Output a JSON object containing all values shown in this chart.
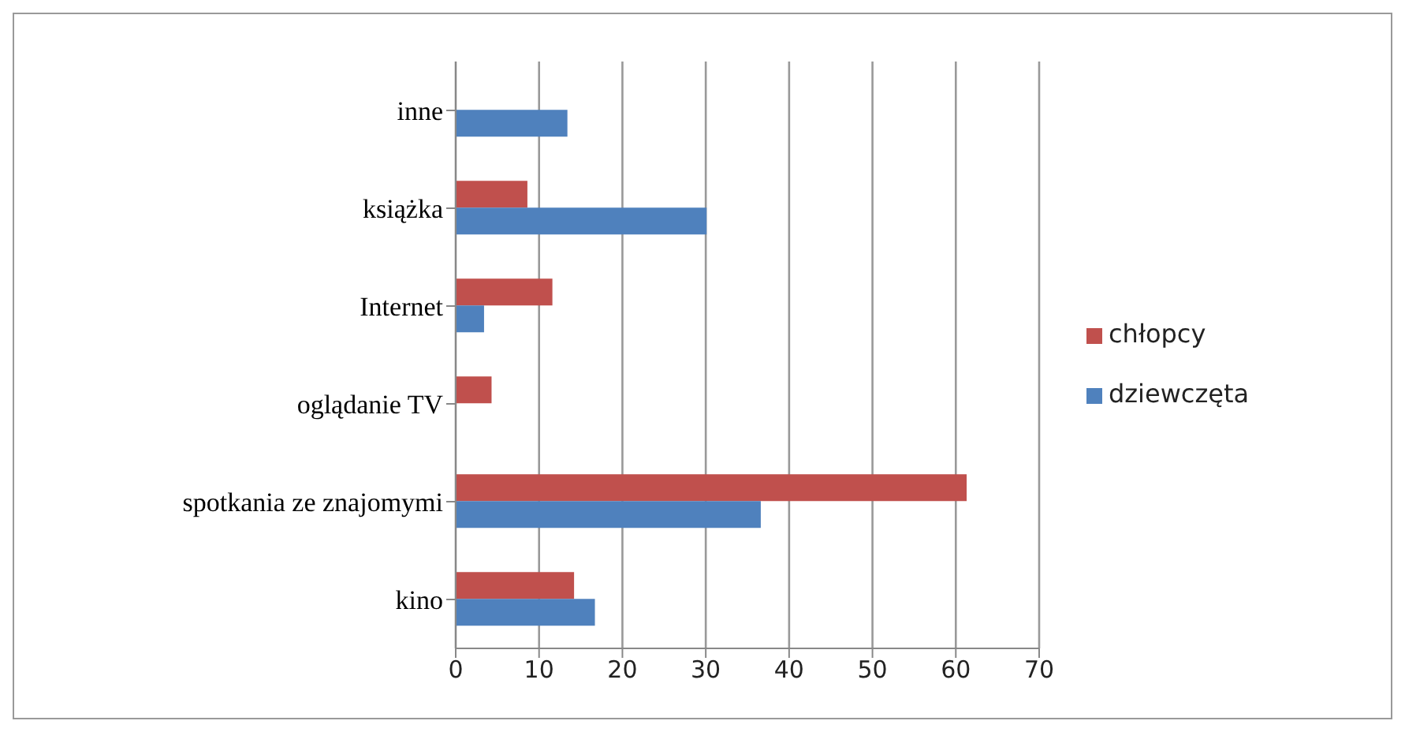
{
  "chart_data": {
    "type": "bar",
    "orientation": "horizontal",
    "categories": [
      "inne",
      "książka",
      "Internet",
      "oglądanie TV",
      "spotkania ze znajomymi",
      "kino"
    ],
    "series": [
      {
        "name": "chłopcy",
        "color": "#c0504d",
        "values": [
          null,
          8.6,
          11.6,
          4.3,
          61.3,
          14.2
        ]
      },
      {
        "name": "dziewczęta",
        "color": "#4f81bd",
        "values": [
          13.4,
          30.1,
          3.4,
          null,
          36.6,
          16.7
        ]
      }
    ],
    "xlim": [
      0,
      70
    ],
    "xticks": [
      0,
      10,
      20,
      30,
      40,
      50,
      60,
      70
    ],
    "grid": "x",
    "legend": "right"
  }
}
